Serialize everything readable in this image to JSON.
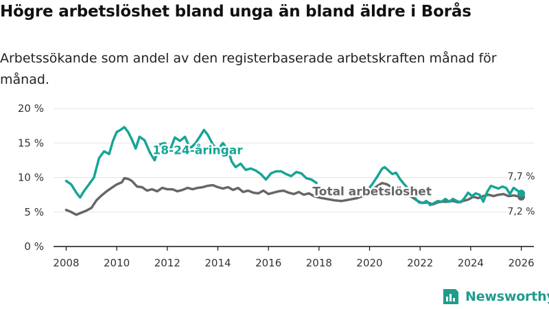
{
  "title": "Högre arbetslöshet bland unga än bland äldre i Borås",
  "subtitle": "Arbetssökande som andel av den registerbaserade arbetskraften månad för månad.",
  "brand": {
    "name": "Newsworthy",
    "color": "#1f9c8c"
  },
  "colors": {
    "youth": "#16a596",
    "total": "#666666",
    "grid": "#e3e3e3",
    "axis": "#111111"
  },
  "chart_data": {
    "type": "line",
    "title": "Högre arbetslöshet bland unga än bland äldre i Borås",
    "xlabel": "",
    "ylabel": "",
    "xlim": [
      2007.5,
      2026.5
    ],
    "ylim": [
      0,
      20
    ],
    "x_ticks": [
      2008,
      2010,
      2012,
      2014,
      2016,
      2018,
      2020,
      2022,
      2024,
      2026
    ],
    "y_ticks": [
      0,
      5,
      10,
      15,
      20
    ],
    "y_tick_labels": [
      "0 %",
      "5 %",
      "10 %",
      "15 %",
      "20 %"
    ],
    "grid": true,
    "series": [
      {
        "name": "18-24-åringar",
        "color": "#16a596",
        "label_x": 2013.2,
        "label_y": 13.4,
        "end_label": "7,7 %",
        "points": [
          [
            2008.0,
            9.5
          ],
          [
            2008.2,
            9.0
          ],
          [
            2008.4,
            7.8
          ],
          [
            2008.55,
            7.1
          ],
          [
            2008.7,
            8.0
          ],
          [
            2008.9,
            9.0
          ],
          [
            2009.1,
            10.0
          ],
          [
            2009.3,
            12.8
          ],
          [
            2009.5,
            13.8
          ],
          [
            2009.7,
            13.4
          ],
          [
            2009.85,
            15.3
          ],
          [
            2010.0,
            16.6
          ],
          [
            2010.15,
            16.9
          ],
          [
            2010.3,
            17.3
          ],
          [
            2010.45,
            16.6
          ],
          [
            2010.6,
            15.5
          ],
          [
            2010.75,
            14.2
          ],
          [
            2010.9,
            15.9
          ],
          [
            2011.1,
            15.4
          ],
          [
            2011.3,
            13.7
          ],
          [
            2011.5,
            12.5
          ],
          [
            2011.7,
            14.8
          ],
          [
            2011.9,
            15.0
          ],
          [
            2012.1,
            13.9
          ],
          [
            2012.3,
            15.8
          ],
          [
            2012.5,
            15.3
          ],
          [
            2012.7,
            15.9
          ],
          [
            2012.9,
            14.2
          ],
          [
            2013.1,
            14.9
          ],
          [
            2013.3,
            16.0
          ],
          [
            2013.45,
            16.9
          ],
          [
            2013.6,
            16.2
          ],
          [
            2013.8,
            14.8
          ],
          [
            2014.0,
            14.0
          ],
          [
            2014.2,
            15.0
          ],
          [
            2014.4,
            14.0
          ],
          [
            2014.55,
            12.3
          ],
          [
            2014.7,
            11.5
          ],
          [
            2014.9,
            12.0
          ],
          [
            2015.1,
            11.1
          ],
          [
            2015.3,
            11.3
          ],
          [
            2015.5,
            11.0
          ],
          [
            2015.7,
            10.5
          ],
          [
            2015.9,
            9.7
          ],
          [
            2016.1,
            10.6
          ],
          [
            2016.3,
            10.9
          ],
          [
            2016.5,
            10.9
          ],
          [
            2016.7,
            10.5
          ],
          [
            2016.9,
            10.2
          ],
          [
            2017.1,
            10.8
          ],
          [
            2017.3,
            10.6
          ],
          [
            2017.5,
            9.9
          ],
          [
            2017.7,
            9.7
          ],
          [
            2017.9,
            9.2
          ]
        ],
        "points_late": [
          [
            2019.9,
            8.1
          ],
          [
            2020.1,
            9.0
          ],
          [
            2020.3,
            10.1
          ],
          [
            2020.5,
            11.3
          ],
          [
            2020.6,
            11.5
          ],
          [
            2020.75,
            11.0
          ],
          [
            2020.9,
            10.5
          ],
          [
            2021.05,
            10.7
          ],
          [
            2021.2,
            9.8
          ],
          [
            2021.35,
            9.1
          ],
          [
            2021.5,
            8.5
          ]
        ],
        "points_end": [
          [
            2021.8,
            7.0
          ],
          [
            2021.95,
            6.4
          ],
          [
            2022.1,
            6.3
          ],
          [
            2022.25,
            6.6
          ],
          [
            2022.4,
            6.0
          ],
          [
            2022.55,
            6.3
          ],
          [
            2022.7,
            6.6
          ],
          [
            2022.85,
            6.5
          ],
          [
            2023.0,
            6.9
          ],
          [
            2023.15,
            6.5
          ],
          [
            2023.3,
            6.9
          ],
          [
            2023.45,
            6.6
          ],
          [
            2023.6,
            6.4
          ],
          [
            2023.75,
            7.0
          ],
          [
            2023.9,
            7.8
          ],
          [
            2024.05,
            7.3
          ],
          [
            2024.2,
            7.7
          ],
          [
            2024.35,
            7.5
          ],
          [
            2024.5,
            6.5
          ],
          [
            2024.65,
            7.9
          ],
          [
            2024.8,
            8.8
          ],
          [
            2024.95,
            8.6
          ],
          [
            2025.1,
            8.4
          ],
          [
            2025.25,
            8.7
          ],
          [
            2025.4,
            8.5
          ],
          [
            2025.55,
            7.6
          ],
          [
            2025.7,
            8.5
          ],
          [
            2025.85,
            8.1
          ],
          [
            2026.0,
            7.7
          ]
        ]
      },
      {
        "name": "Total arbetslöshet",
        "color": "#666666",
        "label_x": 2020.1,
        "label_y": 7.4,
        "end_label": "7,2 %",
        "points": [
          [
            2008.0,
            5.3
          ],
          [
            2008.2,
            5.0
          ],
          [
            2008.4,
            4.6
          ],
          [
            2008.6,
            4.9
          ],
          [
            2008.8,
            5.2
          ],
          [
            2009.0,
            5.6
          ],
          [
            2009.2,
            6.7
          ],
          [
            2009.4,
            7.4
          ],
          [
            2009.6,
            8.0
          ],
          [
            2009.8,
            8.5
          ],
          [
            2010.0,
            9.0
          ],
          [
            2010.2,
            9.3
          ],
          [
            2010.3,
            9.9
          ],
          [
            2010.45,
            9.8
          ],
          [
            2010.6,
            9.5
          ],
          [
            2010.8,
            8.7
          ],
          [
            2011.0,
            8.6
          ],
          [
            2011.2,
            8.1
          ],
          [
            2011.4,
            8.3
          ],
          [
            2011.6,
            8.0
          ],
          [
            2011.8,
            8.5
          ],
          [
            2012.0,
            8.3
          ],
          [
            2012.2,
            8.3
          ],
          [
            2012.4,
            8.0
          ],
          [
            2012.6,
            8.2
          ],
          [
            2012.8,
            8.5
          ],
          [
            2013.0,
            8.3
          ],
          [
            2013.2,
            8.5
          ],
          [
            2013.4,
            8.6
          ],
          [
            2013.6,
            8.8
          ],
          [
            2013.8,
            8.9
          ],
          [
            2014.0,
            8.6
          ],
          [
            2014.2,
            8.4
          ],
          [
            2014.4,
            8.6
          ],
          [
            2014.6,
            8.2
          ],
          [
            2014.8,
            8.5
          ],
          [
            2015.0,
            7.9
          ],
          [
            2015.2,
            8.1
          ],
          [
            2015.4,
            7.8
          ],
          [
            2015.6,
            7.7
          ],
          [
            2015.8,
            8.1
          ],
          [
            2016.0,
            7.6
          ],
          [
            2016.2,
            7.8
          ],
          [
            2016.4,
            8.0
          ],
          [
            2016.6,
            8.1
          ],
          [
            2016.8,
            7.8
          ],
          [
            2017.0,
            7.6
          ],
          [
            2017.2,
            7.9
          ],
          [
            2017.4,
            7.5
          ],
          [
            2017.6,
            7.7
          ],
          [
            2017.8,
            7.3
          ],
          [
            2018.0,
            7.1
          ],
          [
            2018.3,
            6.9
          ],
          [
            2018.6,
            6.7
          ],
          [
            2018.9,
            6.6
          ],
          [
            2019.2,
            6.8
          ],
          [
            2019.5,
            7.0
          ],
          [
            2019.8,
            7.4
          ],
          [
            2020.0,
            7.9
          ],
          [
            2020.2,
            8.5
          ],
          [
            2020.4,
            9.0
          ],
          [
            2020.5,
            9.2
          ],
          [
            2020.7,
            9.0
          ],
          [
            2020.9,
            8.5
          ],
          [
            2021.1,
            8.7
          ],
          [
            2021.3,
            8.2
          ],
          [
            2021.5,
            7.6
          ],
          [
            2021.7,
            7.1
          ],
          [
            2021.9,
            6.6
          ],
          [
            2022.1,
            6.3
          ],
          [
            2022.3,
            6.4
          ],
          [
            2022.5,
            6.1
          ],
          [
            2022.7,
            6.4
          ],
          [
            2022.9,
            6.5
          ],
          [
            2023.1,
            6.5
          ],
          [
            2023.3,
            6.6
          ],
          [
            2023.5,
            6.4
          ],
          [
            2023.7,
            6.6
          ],
          [
            2023.9,
            6.8
          ],
          [
            2024.1,
            7.2
          ],
          [
            2024.3,
            7.0
          ],
          [
            2024.5,
            7.3
          ],
          [
            2024.7,
            7.5
          ],
          [
            2024.9,
            7.3
          ],
          [
            2025.1,
            7.5
          ],
          [
            2025.3,
            7.6
          ],
          [
            2025.5,
            7.3
          ],
          [
            2025.7,
            7.4
          ],
          [
            2025.85,
            7.3
          ],
          [
            2026.0,
            7.2
          ]
        ]
      }
    ]
  }
}
